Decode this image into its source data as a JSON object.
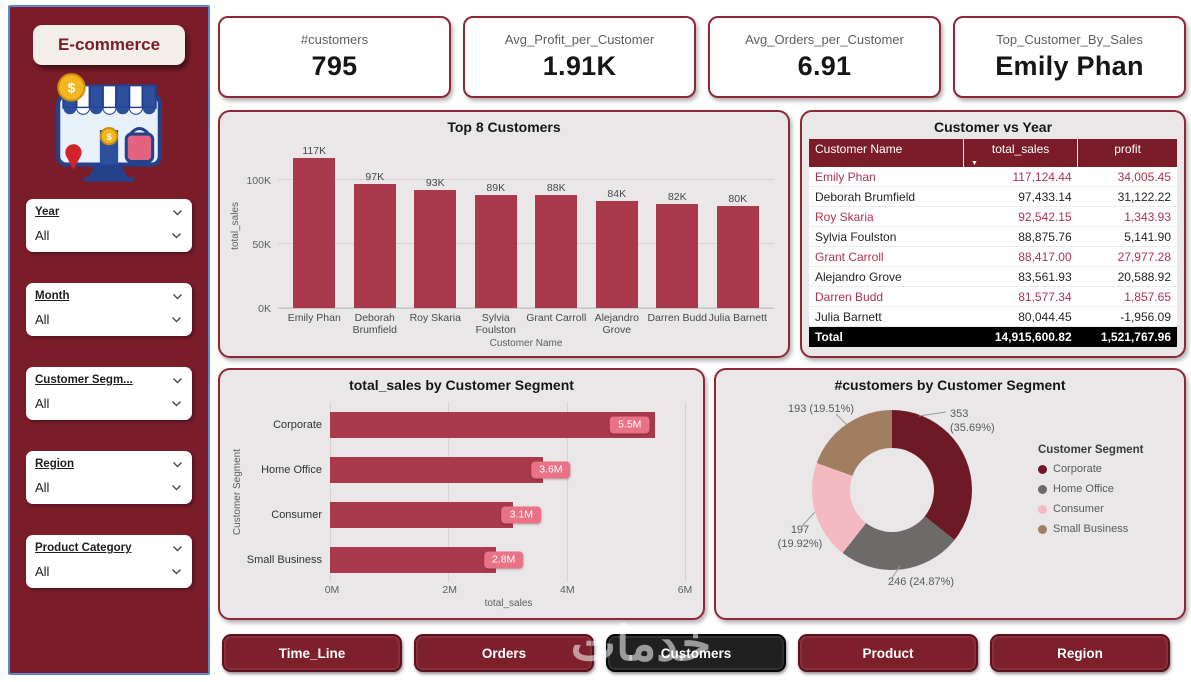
{
  "app": {
    "watermark": "خدمات"
  },
  "colors": {
    "accent_maroon": "#7B1C29",
    "bar_red": "#AA3A4B",
    "badge_pink": "#E97287",
    "card_gray": "#E9E7E7",
    "table_total_bg": "#000000",
    "table_highlight_text": "#AA3350"
  },
  "sidebar": {
    "title": "E-commerce",
    "filters": [
      {
        "label": "Year",
        "value": "All"
      },
      {
        "label": "Month",
        "value": "All"
      },
      {
        "label": "Customer Segm...",
        "value": "All"
      },
      {
        "label": "Region",
        "value": "All"
      },
      {
        "label": "Product Category",
        "value": "All"
      }
    ]
  },
  "kpis": [
    {
      "label": "#customers",
      "value": "795"
    },
    {
      "label": "Avg_Profit_per_Customer",
      "value": "1.91K"
    },
    {
      "label": "Avg_Orders_per_Customer",
      "value": "6.91"
    },
    {
      "label": "Top_Customer_By_Sales",
      "value": "Emily Phan"
    }
  ],
  "nav": {
    "buttons": [
      {
        "label": "Time_Line",
        "active": false
      },
      {
        "label": "Orders",
        "active": false
      },
      {
        "label": "Customers",
        "active": true
      },
      {
        "label": "Product",
        "active": false
      },
      {
        "label": "Region",
        "active": false
      }
    ]
  },
  "chart_data": [
    {
      "id": "top8_customers",
      "type": "bar",
      "title": "Top 8 Customers",
      "xlabel": "Customer Name",
      "ylabel": "total_sales",
      "categories": [
        "Emily Phan",
        "Deborah Brumfield",
        "Roy Skaria",
        "Sylvia Foulston",
        "Grant Carroll",
        "Alejandro Grove",
        "Darren Budd",
        "Julia Barnett"
      ],
      "values": [
        117124.44,
        97433.14,
        92542.15,
        88875.76,
        88417.0,
        83561.93,
        81577.34,
        80044.45
      ],
      "value_labels": [
        "117K",
        "97K",
        "93K",
        "89K",
        "88K",
        "84K",
        "82K",
        "80K"
      ],
      "y_ticks": [
        {
          "label": "0K",
          "value": 0
        },
        {
          "label": "50K",
          "value": 50000
        },
        {
          "label": "100K",
          "value": 100000
        }
      ],
      "ylim": [
        0,
        130000
      ],
      "bar_color": "#AA3A4B",
      "grid": true
    },
    {
      "id": "customer_vs_year",
      "type": "table",
      "title": "Customer vs Year",
      "columns": [
        "Customer Name",
        "total_sales",
        "profit"
      ],
      "sort": "total_sales descending",
      "rows": [
        {
          "name": "Emily Phan",
          "total_sales": "117,124.44",
          "profit": "34,005.45",
          "highlight": true
        },
        {
          "name": "Deborah Brumfield",
          "total_sales": "97,433.14",
          "profit": "31,122.22",
          "highlight": false
        },
        {
          "name": "Roy Skaria",
          "total_sales": "92,542.15",
          "profit": "1,343.93",
          "highlight": true
        },
        {
          "name": "Sylvia Foulston",
          "total_sales": "88,875.76",
          "profit": "5,141.90",
          "highlight": false
        },
        {
          "name": "Grant Carroll",
          "total_sales": "88,417.00",
          "profit": "27,977.28",
          "highlight": true
        },
        {
          "name": "Alejandro Grove",
          "total_sales": "83,561.93",
          "profit": "20,588.92",
          "highlight": false
        },
        {
          "name": "Darren Budd",
          "total_sales": "81,577.34",
          "profit": "1,857.65",
          "highlight": true
        },
        {
          "name": "Julia Barnett",
          "total_sales": "80,044.45",
          "profit": "-1,956.09",
          "highlight": false
        }
      ],
      "total": {
        "label": "Total",
        "total_sales": "14,915,600.82",
        "profit": "1,521,767.96"
      }
    },
    {
      "id": "sales_by_segment",
      "type": "bar",
      "orientation": "horizontal",
      "title": "total_sales by Customer Segment",
      "xlabel": "total_sales",
      "ylabel": "Customer Segment",
      "categories": [
        "Corporate",
        "Home Office",
        "Consumer",
        "Small Business"
      ],
      "values": [
        5.5,
        3.6,
        3.1,
        2.8
      ],
      "value_labels": [
        "5.5M",
        "3.6M",
        "3.1M",
        "2.8M"
      ],
      "x_ticks": [
        {
          "label": "0M",
          "value": 0
        },
        {
          "label": "2M",
          "value": 2
        },
        {
          "label": "4M",
          "value": 4
        },
        {
          "label": "6M",
          "value": 6
        }
      ],
      "xlim": [
        0,
        6
      ],
      "bar_color": "#AA3A4B",
      "badge_color": "#E97287",
      "grid": true
    },
    {
      "id": "customers_by_segment",
      "type": "pie",
      "title": "#customers by Customer Segment",
      "legend_title": "Customer Segment",
      "legend_position": "right",
      "segments": [
        {
          "label": "Corporate",
          "value": 353,
          "pct": 35.69,
          "color": "#6E1A26",
          "callout": "353 (35.69%)"
        },
        {
          "label": "Home Office",
          "value": 246,
          "pct": 24.87,
          "color": "#6D6B6A",
          "callout": "246 (24.87%)"
        },
        {
          "label": "Consumer",
          "value": 197,
          "pct": 19.92,
          "color": "#F3BAC2",
          "callout": "197 (19.92%)"
        },
        {
          "label": "Small Business",
          "value": 193,
          "pct": 19.51,
          "color": "#A17E62",
          "callout": "193 (19.51%)"
        }
      ]
    }
  ]
}
